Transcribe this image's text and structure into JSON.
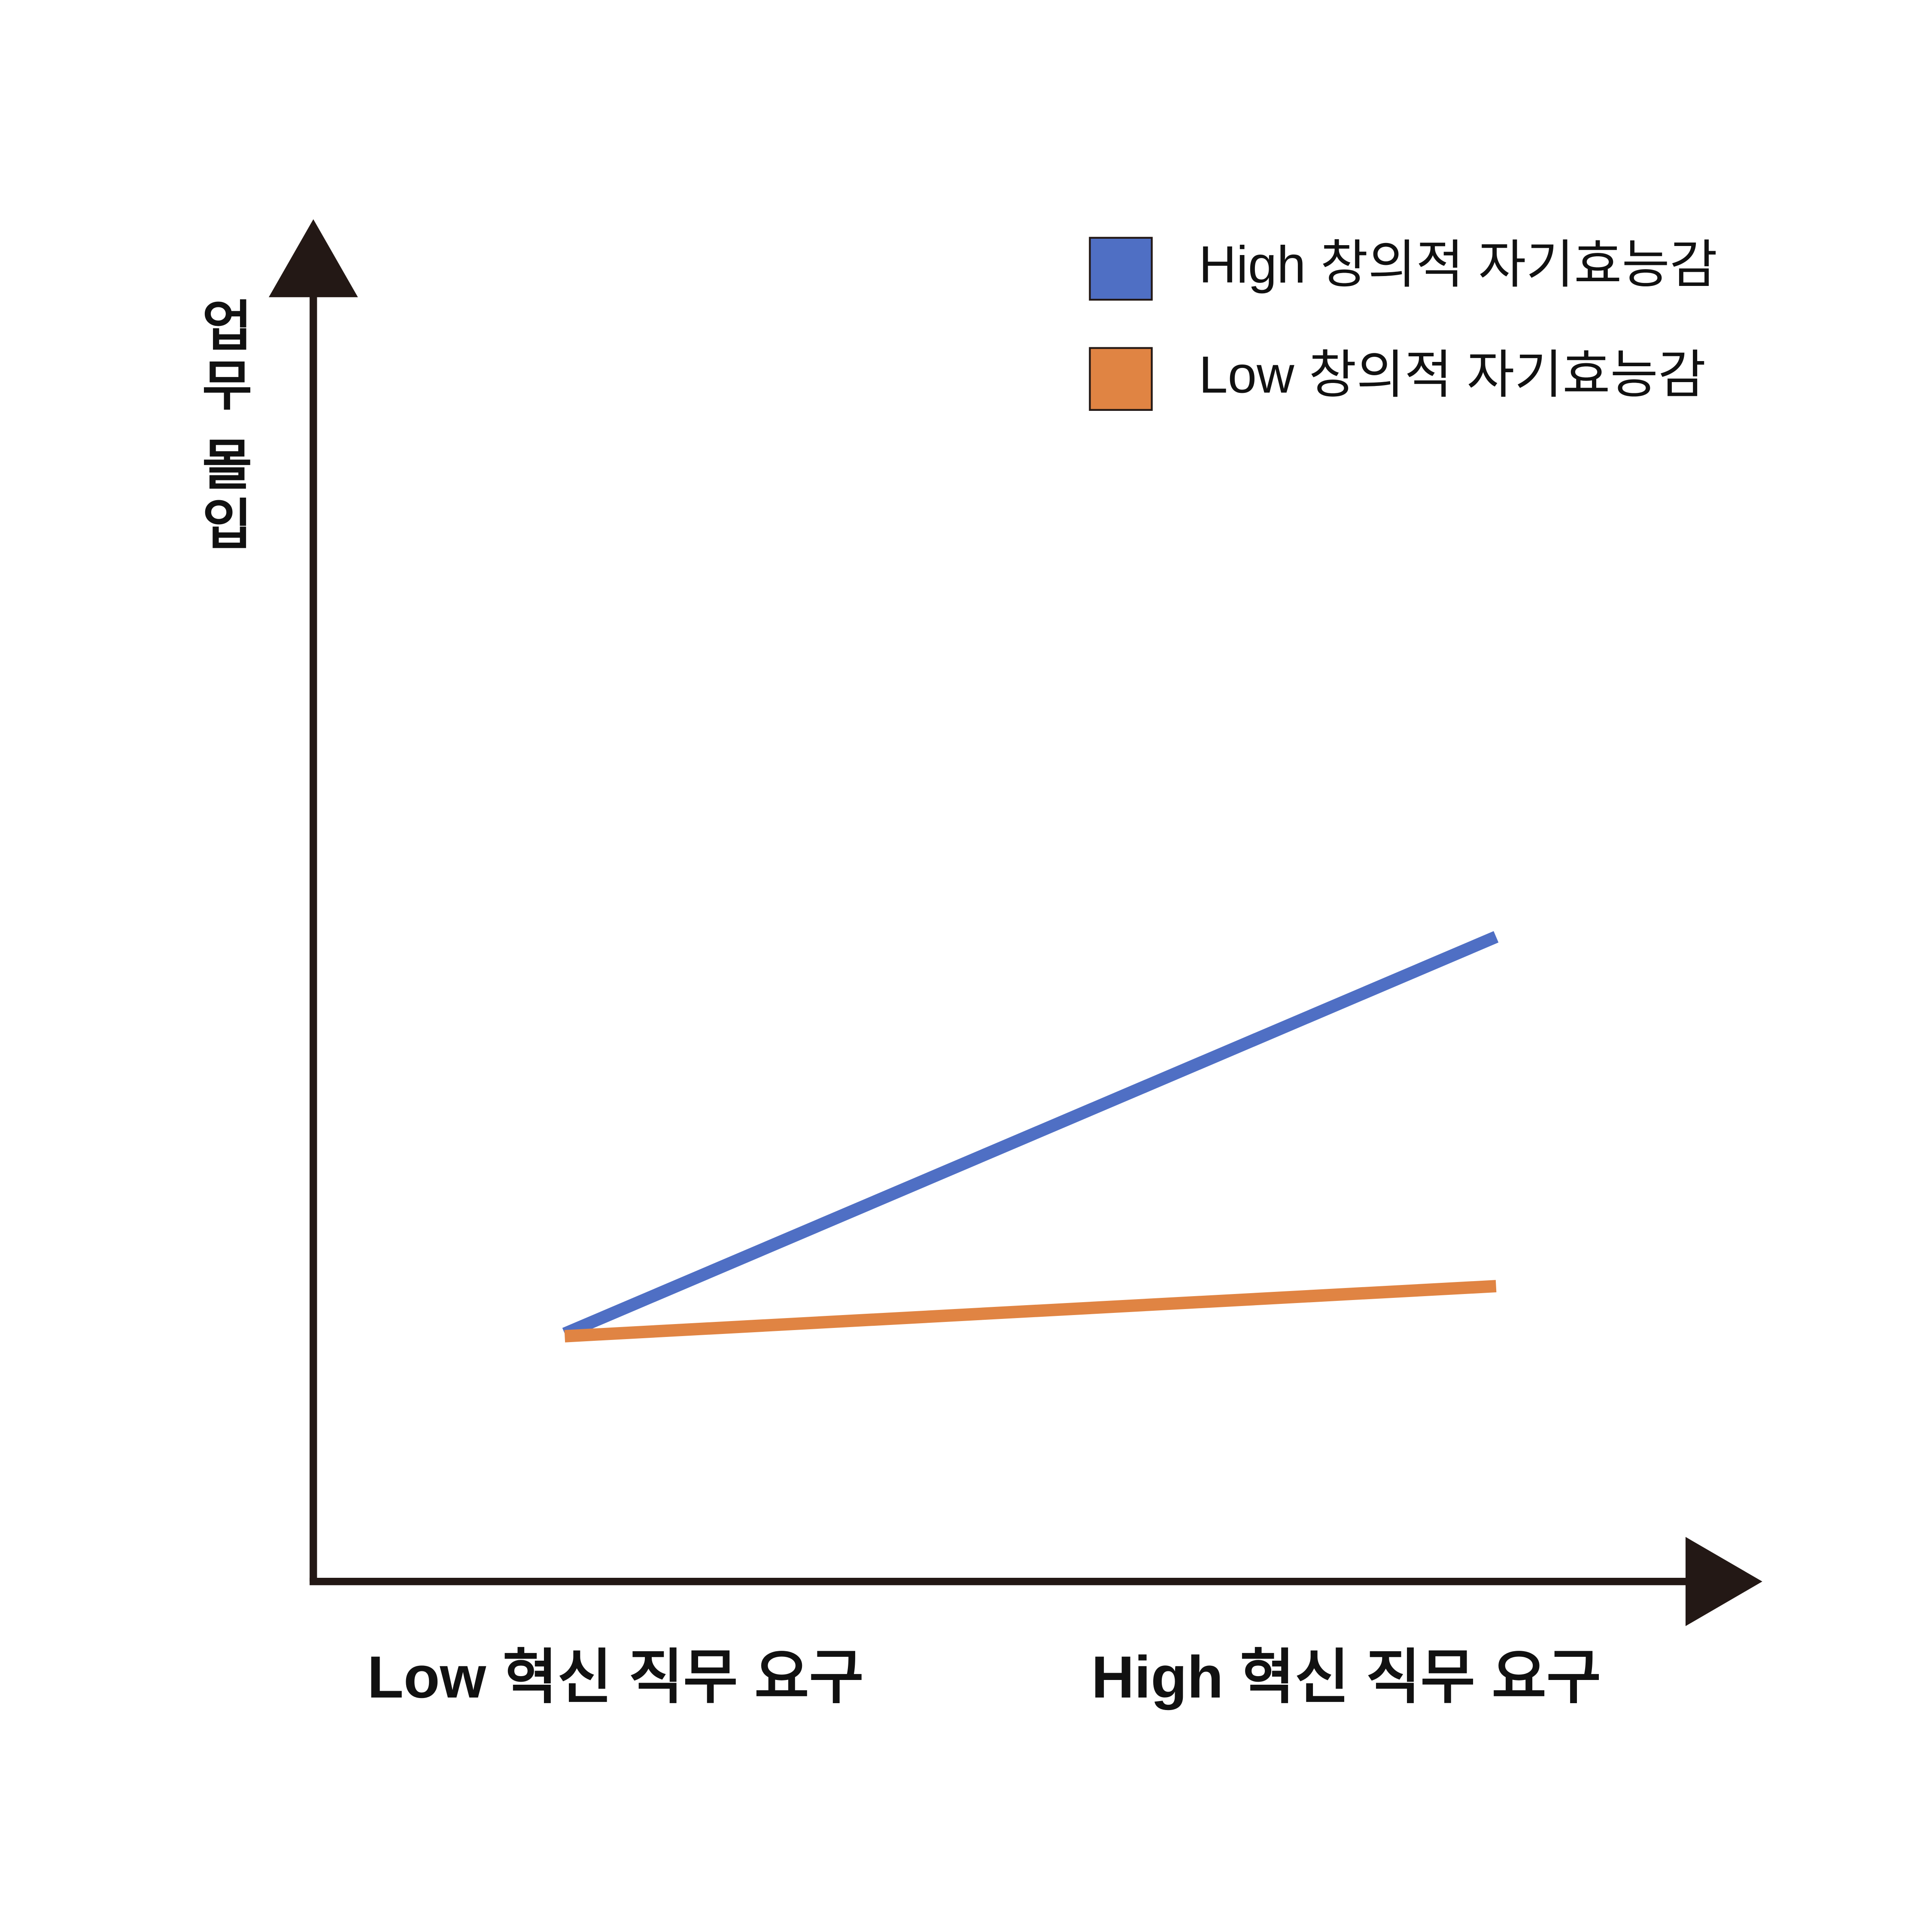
{
  "chart_data": {
    "type": "line",
    "categories": [
      "Low 혁신 직무 요구",
      "High 혁신 직무 요구"
    ],
    "y_label": "업무 몰입",
    "ylim": [
      0,
      100
    ],
    "series": [
      {
        "name": "High 창의적 자기효능감",
        "color": "#4f6fc4",
        "values": [
          19.3,
          50.2
        ]
      },
      {
        "name": "Low 창의적 자기효능감",
        "color": "#e08443",
        "values": [
          19.1,
          23.0
        ]
      }
    ]
  }
}
